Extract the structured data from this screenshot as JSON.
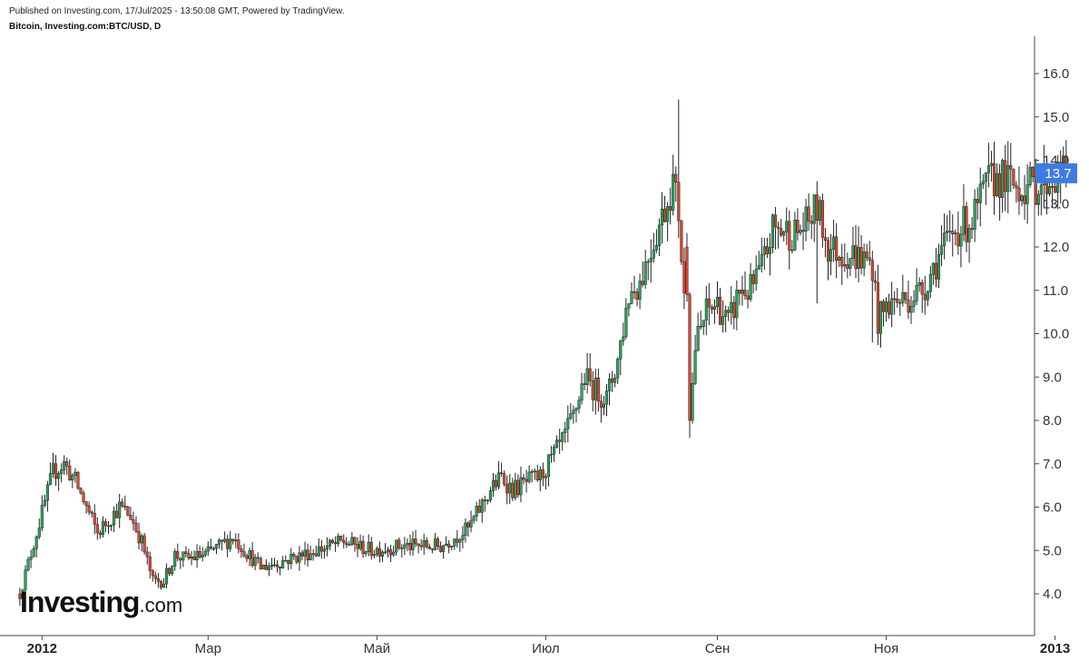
{
  "header": {
    "published": "Published on Investing.com, 17/Jul/2025 - 13:50:08 GMT, Powered by TradingView.",
    "symbol": "Bitcoin, Investing.com:BTC/USD, D"
  },
  "logo": {
    "main": "Investing",
    "domain": ".com"
  },
  "colors": {
    "up": "#26a65b",
    "down": "#e0452c",
    "wick": "#222222",
    "price_tag": "#3d7be0"
  },
  "chart_data": {
    "type": "candlestick",
    "title": "",
    "xlabel": "",
    "ylabel": "",
    "ylim": [
      3.4,
      16.6
    ],
    "y_ticks": [
      "4.0",
      "5.0",
      "6.0",
      "7.0",
      "8.0",
      "9.0",
      "10.0",
      "11.0",
      "12.0",
      "13.0",
      "14.0",
      "15.0",
      "16.0"
    ],
    "x_ticks": [
      {
        "label": "2012",
        "day": 6,
        "bold": true
      },
      {
        "label": "Мар",
        "day": 66,
        "bold": false
      },
      {
        "label": "Май",
        "day": 127,
        "bold": false
      },
      {
        "label": "Июл",
        "day": 188,
        "bold": false
      },
      {
        "label": "Сен",
        "day": 250,
        "bold": false
      },
      {
        "label": "Ноя",
        "day": 311,
        "bold": false
      },
      {
        "label": "2013",
        "day": 372,
        "bold": true
      }
    ],
    "last_price": "13.7",
    "x_days": [
      -2,
      10,
      14,
      18,
      22,
      26,
      30,
      34,
      38,
      42,
      46,
      50,
      54,
      58,
      65,
      75,
      85,
      100,
      115,
      125,
      135,
      150,
      160,
      168,
      172,
      176,
      182,
      186,
      194,
      198,
      202,
      206,
      210,
      214,
      218,
      222,
      226,
      230,
      234,
      236,
      238,
      239,
      240,
      242,
      246,
      250,
      254,
      258,
      262,
      266,
      270,
      274,
      278,
      282,
      286,
      290,
      294,
      300,
      306,
      308,
      312,
      318,
      324,
      330,
      336,
      342,
      348,
      352,
      358,
      364,
      368,
      376
    ],
    "closes": [
      4.0,
      6.8,
      7.0,
      6.6,
      6.0,
      5.4,
      5.7,
      6.0,
      5.8,
      5.2,
      4.3,
      4.3,
      4.9,
      4.8,
      4.9,
      5.3,
      4.6,
      4.9,
      5.2,
      5.0,
      5.1,
      5.1,
      5.5,
      6.4,
      6.7,
      6.4,
      6.6,
      6.7,
      7.5,
      8.1,
      9.0,
      8.7,
      8.5,
      9.4,
      10.9,
      11.2,
      12.0,
      12.7,
      13.5,
      12.8,
      10.8,
      9.3,
      8.0,
      9.7,
      10.5,
      10.7,
      10.2,
      11.0,
      11.0,
      11.5,
      12.4,
      12.4,
      12.3,
      12.5,
      12.9,
      12.0,
      11.9,
      11.8,
      11.6,
      10.3,
      10.7,
      10.8,
      11.0,
      11.8,
      12.4,
      12.6,
      13.5,
      13.6,
      13.4,
      13.4,
      13.5,
      13.7
    ]
  }
}
